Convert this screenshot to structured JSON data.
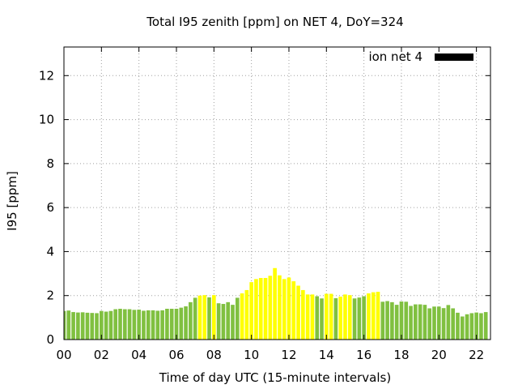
{
  "chart_data": {
    "type": "bar",
    "title": "Total I95 zenith [ppm] on NET 4, DoY=324",
    "xlabel": "Time of day UTC (15-minute intervals)",
    "ylabel": "I95 [ppm]",
    "xlim": [
      0,
      22.75
    ],
    "ylim": [
      0,
      13.3
    ],
    "interval_hours": 0.25,
    "x_ticks": [
      "00",
      "02",
      "04",
      "06",
      "08",
      "10",
      "12",
      "14",
      "16",
      "18",
      "20",
      "22"
    ],
    "y_ticks": [
      "0",
      "2",
      "4",
      "6",
      "8",
      "10",
      "12"
    ],
    "grid": true,
    "legend": {
      "placement": "top-right",
      "entries": [
        {
          "label": "ion net 4",
          "color": "#000000"
        }
      ]
    },
    "colors": {
      "normal": "#80c040",
      "elevated": "#ffff00"
    },
    "values": [
      1.3,
      1.32,
      1.25,
      1.23,
      1.24,
      1.22,
      1.21,
      1.2,
      1.3,
      1.27,
      1.3,
      1.38,
      1.4,
      1.38,
      1.38,
      1.35,
      1.36,
      1.31,
      1.33,
      1.33,
      1.31,
      1.33,
      1.4,
      1.4,
      1.4,
      1.45,
      1.51,
      1.7,
      1.9,
      2.0,
      2.02,
      1.92,
      2.02,
      1.65,
      1.62,
      1.7,
      1.58,
      1.9,
      2.1,
      2.25,
      2.61,
      2.75,
      2.8,
      2.8,
      2.9,
      3.25,
      2.92,
      2.75,
      2.82,
      2.65,
      2.45,
      2.25,
      2.05,
      2.05,
      1.97,
      1.87,
      2.08,
      2.08,
      1.88,
      1.95,
      2.05,
      2.02,
      1.87,
      1.91,
      1.97,
      2.1,
      2.15,
      2.17,
      1.72,
      1.75,
      1.7,
      1.58,
      1.73,
      1.72,
      1.53,
      1.6,
      1.6,
      1.58,
      1.42,
      1.5,
      1.5,
      1.43,
      1.57,
      1.42,
      1.22,
      1.05,
      1.15,
      1.2,
      1.23,
      1.2,
      1.25
    ],
    "status": [
      "n",
      "n",
      "n",
      "n",
      "n",
      "n",
      "n",
      "n",
      "n",
      "n",
      "n",
      "n",
      "n",
      "n",
      "n",
      "n",
      "n",
      "n",
      "n",
      "n",
      "n",
      "n",
      "n",
      "n",
      "n",
      "n",
      "n",
      "n",
      "n",
      "e",
      "e",
      "n",
      "e",
      "n",
      "n",
      "n",
      "n",
      "n",
      "e",
      "e",
      "e",
      "e",
      "e",
      "e",
      "e",
      "e",
      "e",
      "e",
      "e",
      "e",
      "e",
      "e",
      "e",
      "e",
      "n",
      "n",
      "e",
      "e",
      "n",
      "e",
      "e",
      "e",
      "n",
      "n",
      "n",
      "e",
      "e",
      "e",
      "n",
      "n",
      "n",
      "n",
      "n",
      "n",
      "n",
      "n",
      "n",
      "n",
      "n",
      "n",
      "n",
      "n",
      "n",
      "n",
      "n",
      "n",
      "n",
      "n",
      "n",
      "n",
      "n"
    ]
  }
}
